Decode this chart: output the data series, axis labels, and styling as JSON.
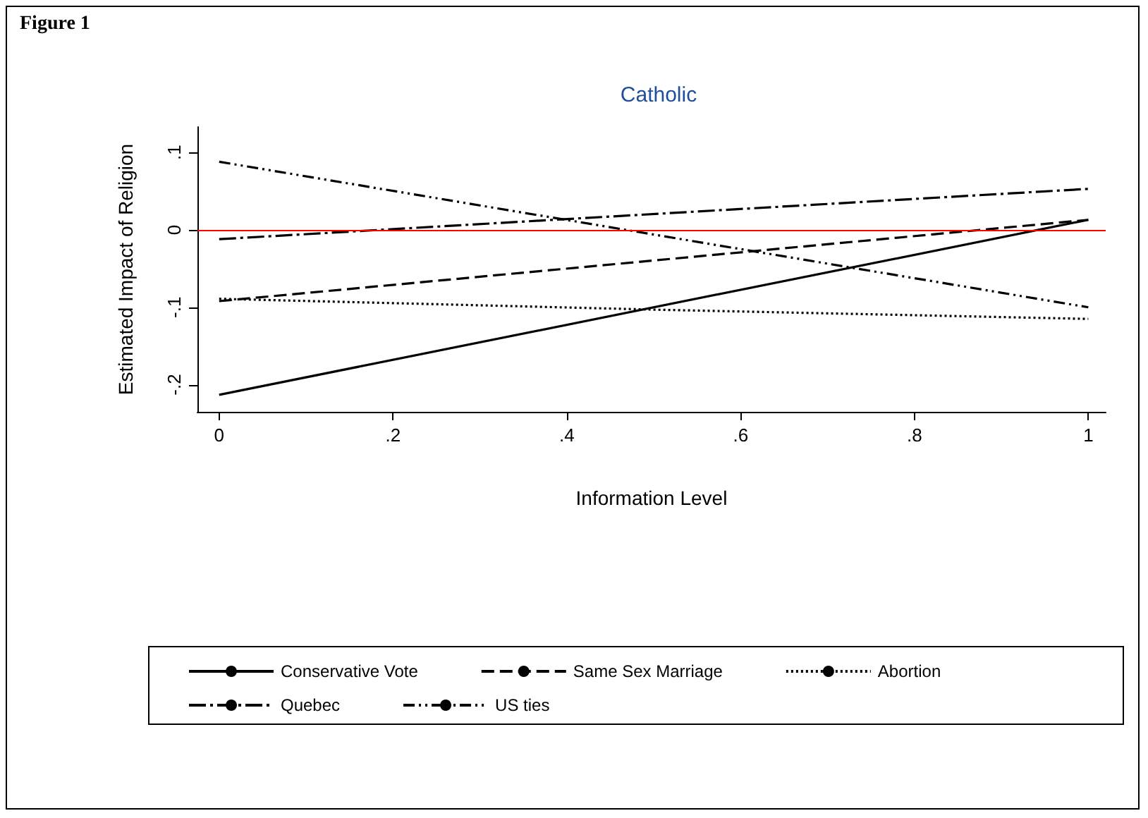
{
  "chart_data": {
    "type": "line",
    "title": "Catholic",
    "xlabel": "Information Level",
    "ylabel": "Estimated Impact of Religion",
    "annotations": [
      "Figure 1"
    ],
    "xlim": [
      -0.025,
      1.02
    ],
    "ylim": [
      -0.235,
      0.133
    ],
    "xticks": [
      0,
      {
        "value": 0.2,
        "label": ".2"
      },
      {
        "value": 0.4,
        "label": ".4"
      },
      {
        "value": 0.6,
        "label": ".6"
      },
      {
        "value": 0.8,
        "label": ".8"
      },
      1
    ],
    "yticks": [
      {
        "value": -0.2,
        "label": "-.2"
      },
      {
        "value": -0.1,
        "label": "-.1"
      },
      0,
      {
        "value": 0.1,
        "label": ".1"
      }
    ],
    "grid": false,
    "legend": "bottom",
    "marker": "none",
    "ref_lines": [
      {
        "axis": "y",
        "value": 0,
        "color": "#ff0000"
      }
    ],
    "series": [
      {
        "name": "Conservative Vote",
        "color": "#000000",
        "line_style": "solid",
        "x": [
          0,
          1
        ],
        "values": [
          -0.213,
          0.013
        ]
      },
      {
        "name": "Same Sex Marriage",
        "color": "#000000",
        "line_style": "dashed",
        "x": [
          0,
          1
        ],
        "values": [
          -0.092,
          0.013
        ]
      },
      {
        "name": "Abortion",
        "color": "#000000",
        "line_style": "dotted",
        "x": [
          0,
          0.5,
          1
        ],
        "values": [
          -0.089,
          -0.103,
          -0.115
        ]
      },
      {
        "name": "Quebec",
        "color": "#000000",
        "line_style": "dashdot",
        "x": [
          0,
          1
        ],
        "values": [
          -0.012,
          0.053
        ]
      },
      {
        "name": "US ties",
        "color": "#000000",
        "line_style": "dashdotdot",
        "x": [
          0,
          1
        ],
        "values": [
          0.088,
          -0.1
        ]
      }
    ]
  }
}
